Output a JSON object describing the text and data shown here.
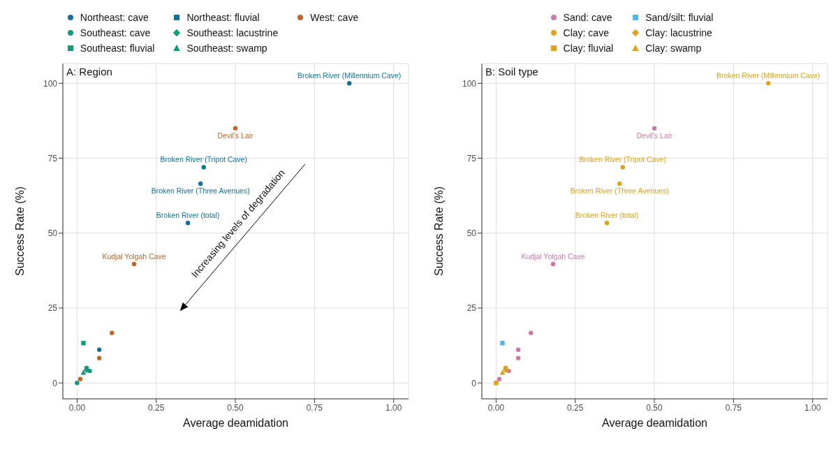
{
  "chart_data": [
    {
      "type": "scatter",
      "title": "A: Region",
      "xlabel": "Average deamidation",
      "ylabel": "Success Rate (%)",
      "xlim": [
        -0.045,
        1.047
      ],
      "ylim": [
        -5.3,
        106.6
      ],
      "xticks": [
        {
          "value": 0,
          "label": "0.00"
        },
        {
          "value": 0.25,
          "label": "0.25"
        },
        {
          "value": 0.5,
          "label": "0.50"
        },
        {
          "value": 0.75,
          "label": "0.75"
        },
        {
          "value": 1,
          "label": "1.00"
        }
      ],
      "yticks": [
        0,
        25,
        50,
        75,
        100
      ],
      "grid": true,
      "legend": "top",
      "series": [
        {
          "name": "Northeast: cave",
          "color": "#11719e",
          "marker": "circle",
          "x": [
            0.86,
            0.4,
            0.39,
            0.35,
            0.07
          ],
          "values": [
            100,
            72,
            66.5,
            53.4,
            11.1
          ]
        },
        {
          "name": "Southeast: cave",
          "color": "#139a7a",
          "marker": "circle",
          "x": [
            0.03,
            0.04,
            0
          ],
          "values": [
            5.0,
            4.0,
            0
          ]
        },
        {
          "name": "Southeast: fluvial",
          "color": "#139a7a",
          "marker": "square",
          "x": [
            0.02
          ],
          "values": [
            13.3
          ]
        },
        {
          "name": "Northeast: fluvial",
          "color": "#11719e",
          "marker": "square"
        },
        {
          "name": "Southeast: lacustrine",
          "color": "#139a7a",
          "marker": "diamond",
          "x": [
            0.03
          ],
          "values": [
            4.3
          ]
        },
        {
          "name": "Southeast: swamp",
          "color": "#139a7a",
          "marker": "triangle",
          "x": [
            0.02
          ],
          "values": [
            3.5
          ]
        },
        {
          "name": "West: cave",
          "color": "#c0652a",
          "marker": "circle",
          "x": [
            0.5,
            0.18,
            0.11,
            0.07,
            0.01
          ],
          "values": [
            85,
            39.7,
            16.7,
            8.3,
            1.3
          ]
        }
      ],
      "annotations": [
        {
          "text": "Broken River (Millennium Cave)",
          "x": 0.86,
          "y": 100
        },
        {
          "text": "Devil's Lair",
          "x": 0.5,
          "y": 85
        },
        {
          "text": "Broken River (Tripot Cave)",
          "x": 0.4,
          "y": 72
        },
        {
          "text": "Broken River (Three Avenues)",
          "x": 0.39,
          "y": 66.5
        },
        {
          "text": "Broken River (total)",
          "x": 0.35,
          "y": 53.4
        },
        {
          "text": "Kudjal Yolgah Cave",
          "x": 0.18,
          "y": 39.7
        },
        "Increasing levels of degradation"
      ]
    },
    {
      "type": "scatter",
      "title": "B: Soil type",
      "xlabel": "Average deamidation",
      "ylabel": "Success Rate (%)",
      "xlim": [
        -0.045,
        1.047
      ],
      "ylim": [
        -5.3,
        106.6
      ],
      "xticks": [
        {
          "value": 0,
          "label": "0.00"
        },
        {
          "value": 0.25,
          "label": "0.25"
        },
        {
          "value": 0.5,
          "label": "0.50"
        },
        {
          "value": 0.75,
          "label": "0.75"
        },
        {
          "value": 1,
          "label": "1.00"
        }
      ],
      "yticks": [
        0,
        25,
        50,
        75,
        100
      ],
      "grid": true,
      "legend": "top",
      "series": [
        {
          "name": "Sand: cave",
          "color": "#cc79a7",
          "marker": "circle",
          "x": [
            0.5,
            0.18,
            0.11,
            0.07,
            0.07,
            0.04,
            0.01
          ],
          "values": [
            85,
            39.7,
            16.7,
            11.1,
            8.3,
            4.0,
            1.3
          ]
        },
        {
          "name": "Clay: cave",
          "color": "#e0a21a",
          "marker": "circle",
          "x": [
            0.86,
            0.4,
            0.39,
            0.35,
            0.03
          ],
          "values": [
            100,
            72,
            66.5,
            53.4,
            5.0
          ]
        },
        {
          "name": "Clay: fluvial",
          "color": "#e0a21a",
          "marker": "square",
          "x": [
            0
          ],
          "values": [
            0
          ]
        },
        {
          "name": "Sand/silt: fluvial",
          "color": "#56b4e9",
          "marker": "square",
          "x": [
            0.02
          ],
          "values": [
            13.3
          ]
        },
        {
          "name": "Clay: lacustrine",
          "color": "#e0a21a",
          "marker": "diamond",
          "x": [
            0.03
          ],
          "values": [
            4.3
          ]
        },
        {
          "name": "Clay: swamp",
          "color": "#e0a21a",
          "marker": "triangle",
          "x": [
            0.02
          ],
          "values": [
            3.5
          ]
        }
      ],
      "annotations": [
        {
          "text": "Broken River (Millennium Cave)",
          "x": 0.86,
          "y": 100
        },
        {
          "text": "Devil's Lair",
          "x": 0.5,
          "y": 85
        },
        {
          "text": "Broken River (Tripot Cave)",
          "x": 0.4,
          "y": 72
        },
        {
          "text": "Broken River (Three Avenues)",
          "x": 0.39,
          "y": 66.5
        },
        {
          "text": "Broken River (total)",
          "x": 0.35,
          "y": 53.4
        },
        {
          "text": "Kudjal Yolgah Cave",
          "x": 0.18,
          "y": 39.7
        }
      ]
    }
  ]
}
